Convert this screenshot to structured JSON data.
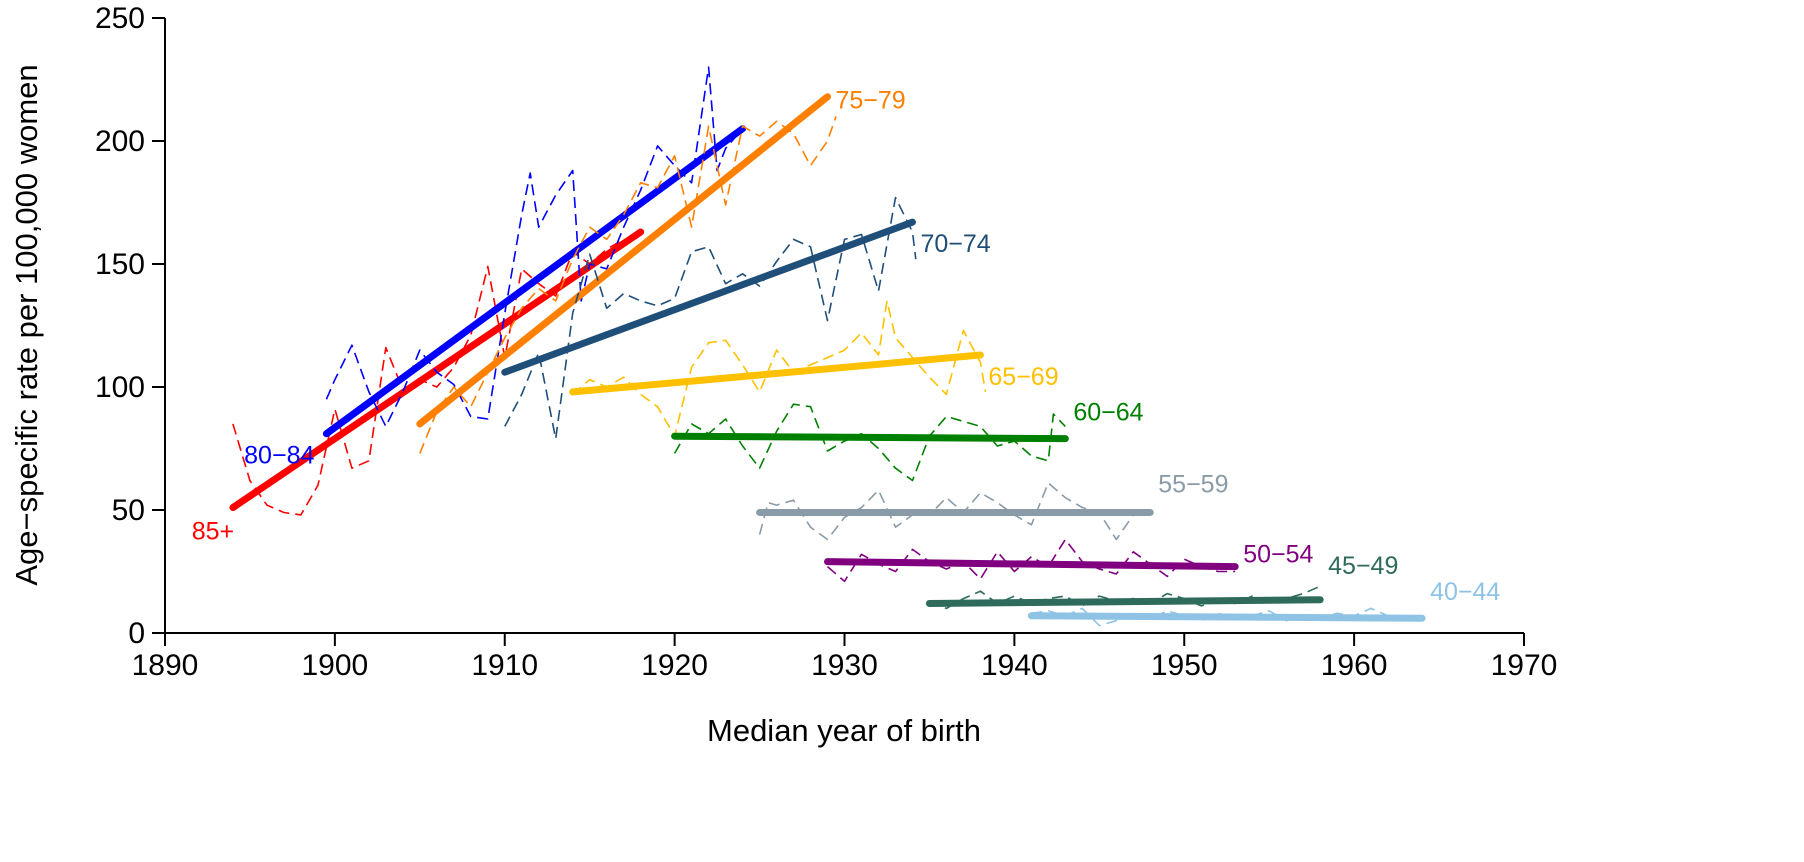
{
  "chart_data": {
    "type": "line",
    "title": "",
    "xlabel": "Median year of birth",
    "ylabel": "Age−specific rate per 100,000 women",
    "xlim": [
      1890,
      1970
    ],
    "ylim": [
      0,
      250
    ],
    "x_ticks": [
      "1890",
      "1900",
      "1910",
      "1920",
      "1930",
      "1940",
      "1950",
      "1960",
      "1970"
    ],
    "y_ticks": [
      "0",
      "50",
      "100",
      "150",
      "200",
      "250"
    ],
    "grid": false,
    "legend": "direct labels next to each fitted line",
    "series": [
      {
        "name": "85+",
        "color": "#FF0000",
        "fit": [
          [
            1894,
            51
          ],
          [
            1918,
            163
          ]
        ],
        "observed": [
          [
            1894,
            85
          ],
          [
            1895,
            62
          ],
          [
            1896,
            52
          ],
          [
            1897,
            49
          ],
          [
            1898,
            48
          ],
          [
            1899,
            60
          ],
          [
            1900,
            91
          ],
          [
            1901,
            67
          ],
          [
            1902,
            70
          ],
          [
            1903,
            116
          ],
          [
            1904,
            99
          ],
          [
            1905,
            103
          ],
          [
            1906,
            100
          ],
          [
            1907,
            108
          ],
          [
            1908,
            121
          ],
          [
            1909,
            149
          ],
          [
            1910,
            112
          ],
          [
            1911,
            148
          ],
          [
            1912,
            142
          ],
          [
            1913,
            137
          ],
          [
            1914,
            155
          ],
          [
            1915,
            150
          ],
          [
            1916,
            156
          ],
          [
            1917,
            160
          ]
        ]
      },
      {
        "name": "80−84",
        "color": "#0000FF",
        "fit": [
          [
            1899.5,
            81
          ],
          [
            1924,
            205
          ]
        ],
        "observed": [
          [
            1899.5,
            95
          ],
          [
            1900,
            103
          ],
          [
            1901,
            117
          ],
          [
            1902,
            98
          ],
          [
            1903,
            84
          ],
          [
            1904,
            98
          ],
          [
            1905,
            115
          ],
          [
            1906,
            106
          ],
          [
            1907,
            101
          ],
          [
            1908,
            88
          ],
          [
            1909,
            87
          ],
          [
            1910,
            130
          ],
          [
            1911,
            170
          ],
          [
            1911.5,
            187
          ],
          [
            1912,
            165
          ],
          [
            1913,
            178
          ],
          [
            1914,
            188
          ],
          [
            1914.5,
            135
          ],
          [
            1915,
            150
          ],
          [
            1916,
            148
          ],
          [
            1917,
            165
          ],
          [
            1918,
            180
          ],
          [
            1919,
            198
          ],
          [
            1920,
            190
          ],
          [
            1921,
            183
          ],
          [
            1922,
            230
          ],
          [
            1922.5,
            188
          ],
          [
            1923,
            197
          ],
          [
            1924,
            205
          ]
        ]
      },
      {
        "name": "75−79",
        "color": "#FF8000",
        "fit": [
          [
            1905,
            85
          ],
          [
            1929,
            218
          ]
        ],
        "observed": [
          [
            1905,
            73
          ],
          [
            1906,
            90
          ],
          [
            1907,
            100
          ],
          [
            1908,
            92
          ],
          [
            1909,
            106
          ],
          [
            1910,
            120
          ],
          [
            1911,
            132
          ],
          [
            1912,
            140
          ],
          [
            1913,
            135
          ],
          [
            1914,
            152
          ],
          [
            1915,
            165
          ],
          [
            1916,
            160
          ],
          [
            1917,
            170
          ],
          [
            1918,
            183
          ],
          [
            1919,
            181
          ],
          [
            1920,
            194
          ],
          [
            1921,
            165
          ],
          [
            1922,
            206
          ],
          [
            1923,
            174
          ],
          [
            1924,
            206
          ],
          [
            1925,
            202
          ],
          [
            1926,
            208
          ],
          [
            1927,
            203
          ],
          [
            1928,
            190
          ],
          [
            1929,
            200
          ],
          [
            1929.5,
            210
          ]
        ]
      },
      {
        "name": "70−74",
        "color": "#1F4E79",
        "fit": [
          [
            1910,
            106
          ],
          [
            1934,
            167
          ]
        ],
        "observed": [
          [
            1910,
            84
          ],
          [
            1911,
            97
          ],
          [
            1912,
            114
          ],
          [
            1913,
            79
          ],
          [
            1914,
            130
          ],
          [
            1915,
            154
          ],
          [
            1916,
            132
          ],
          [
            1917,
            138
          ],
          [
            1918,
            135
          ],
          [
            1919,
            133
          ],
          [
            1920,
            136
          ],
          [
            1921,
            155
          ],
          [
            1922,
            157
          ],
          [
            1923,
            142
          ],
          [
            1924,
            146
          ],
          [
            1925,
            141
          ],
          [
            1926,
            151
          ],
          [
            1927,
            160
          ],
          [
            1928,
            157
          ],
          [
            1929,
            127
          ],
          [
            1930,
            160
          ],
          [
            1931,
            162
          ],
          [
            1932,
            139
          ],
          [
            1933,
            177
          ],
          [
            1934,
            163
          ],
          [
            1934.2,
            152
          ]
        ]
      },
      {
        "name": "65−69",
        "color": "#FFC000",
        "fit": [
          [
            1914,
            98
          ],
          [
            1938,
            113
          ]
        ],
        "observed": [
          [
            1914,
            97
          ],
          [
            1915,
            103
          ],
          [
            1916,
            100
          ],
          [
            1917,
            104
          ],
          [
            1918,
            97
          ],
          [
            1919,
            92
          ],
          [
            1920,
            80
          ],
          [
            1921,
            108
          ],
          [
            1922,
            118
          ],
          [
            1923,
            119
          ],
          [
            1924,
            109
          ],
          [
            1925,
            98
          ],
          [
            1926,
            115
          ],
          [
            1927,
            106
          ],
          [
            1928,
            109
          ],
          [
            1929,
            112
          ],
          [
            1930,
            115
          ],
          [
            1931,
            122
          ],
          [
            1932,
            113
          ],
          [
            1932.5,
            135
          ],
          [
            1933,
            120
          ],
          [
            1934,
            112
          ],
          [
            1935,
            104
          ],
          [
            1936,
            97
          ],
          [
            1937,
            123
          ],
          [
            1938,
            110
          ],
          [
            1938.3,
            98
          ]
        ]
      },
      {
        "name": "60−64",
        "color": "#008000",
        "fit": [
          [
            1920,
            80
          ],
          [
            1943,
            79
          ]
        ],
        "observed": [
          [
            1920,
            73
          ],
          [
            1921,
            85
          ],
          [
            1922,
            81
          ],
          [
            1923,
            87
          ],
          [
            1924,
            76
          ],
          [
            1925,
            67
          ],
          [
            1926,
            82
          ],
          [
            1927,
            93
          ],
          [
            1928,
            92
          ],
          [
            1929,
            74
          ],
          [
            1930,
            78
          ],
          [
            1931,
            81
          ],
          [
            1932,
            75
          ],
          [
            1933,
            67
          ],
          [
            1934,
            62
          ],
          [
            1935,
            80
          ],
          [
            1936,
            88
          ],
          [
            1937,
            86
          ],
          [
            1938,
            84
          ],
          [
            1939,
            76
          ],
          [
            1940,
            78
          ],
          [
            1941,
            72
          ],
          [
            1942,
            70
          ],
          [
            1942.3,
            89
          ],
          [
            1943,
            84
          ]
        ]
      },
      {
        "name": "55−59",
        "color": "#8A9BA8",
        "fit": [
          [
            1925,
            49
          ],
          [
            1948,
            49
          ]
        ],
        "observed": [
          [
            1925,
            40
          ],
          [
            1925.5,
            53
          ],
          [
            1926,
            52
          ],
          [
            1927,
            54
          ],
          [
            1928,
            43
          ],
          [
            1929,
            38
          ],
          [
            1930,
            47
          ],
          [
            1931,
            51
          ],
          [
            1932,
            58
          ],
          [
            1933,
            43
          ],
          [
            1934,
            48
          ],
          [
            1935,
            48
          ],
          [
            1936,
            55
          ],
          [
            1937,
            49
          ],
          [
            1938,
            57
          ],
          [
            1939,
            53
          ],
          [
            1940,
            48
          ],
          [
            1941,
            44
          ],
          [
            1942,
            61
          ],
          [
            1943,
            55
          ],
          [
            1944,
            51
          ],
          [
            1945,
            49
          ],
          [
            1946,
            38
          ],
          [
            1947,
            48
          ],
          [
            1948,
            49
          ]
        ]
      },
      {
        "name": "50−54",
        "color": "#800080",
        "fit": [
          [
            1929,
            29
          ],
          [
            1953,
            27
          ]
        ],
        "observed": [
          [
            1929,
            27
          ],
          [
            1930,
            21
          ],
          [
            1931,
            32
          ],
          [
            1932,
            28
          ],
          [
            1933,
            25
          ],
          [
            1934,
            34
          ],
          [
            1935,
            29
          ],
          [
            1936,
            26
          ],
          [
            1937,
            29
          ],
          [
            1938,
            22
          ],
          [
            1939,
            33
          ],
          [
            1940,
            25
          ],
          [
            1941,
            31
          ],
          [
            1942,
            27
          ],
          [
            1943,
            38
          ],
          [
            1944,
            29
          ],
          [
            1945,
            26
          ],
          [
            1946,
            24
          ],
          [
            1947,
            33
          ],
          [
            1948,
            28
          ],
          [
            1949,
            23
          ],
          [
            1950,
            30
          ],
          [
            1951,
            27
          ],
          [
            1952,
            25
          ],
          [
            1953,
            25
          ]
        ]
      },
      {
        "name": "45−49",
        "color": "#2E6B5B",
        "fit": [
          [
            1935,
            12
          ],
          [
            1958,
            13.5
          ]
        ],
        "observed": [
          [
            1935,
            13
          ],
          [
            1936,
            10
          ],
          [
            1937,
            14
          ],
          [
            1938,
            17
          ],
          [
            1939,
            12
          ],
          [
            1940,
            15
          ],
          [
            1941,
            12
          ],
          [
            1942,
            14
          ],
          [
            1943,
            15
          ],
          [
            1944,
            11
          ],
          [
            1945,
            15
          ],
          [
            1946,
            13
          ],
          [
            1947,
            14
          ],
          [
            1948,
            12
          ],
          [
            1949,
            16
          ],
          [
            1950,
            14
          ],
          [
            1951,
            11
          ],
          [
            1952,
            13
          ],
          [
            1953,
            12
          ],
          [
            1954,
            15
          ],
          [
            1955,
            13
          ],
          [
            1956,
            14
          ],
          [
            1957,
            16
          ],
          [
            1958,
            19
          ]
        ]
      },
      {
        "name": "40−44",
        "color": "#8EC3E6",
        "fit": [
          [
            1941,
            7
          ],
          [
            1964,
            6
          ]
        ],
        "observed": [
          [
            1941,
            8
          ],
          [
            1942,
            9
          ],
          [
            1943,
            7
          ],
          [
            1944,
            10
          ],
          [
            1945,
            3
          ],
          [
            1946,
            5
          ],
          [
            1947,
            8
          ],
          [
            1948,
            6
          ],
          [
            1949,
            9
          ],
          [
            1950,
            7
          ],
          [
            1951,
            5
          ],
          [
            1952,
            8
          ],
          [
            1953,
            6
          ],
          [
            1954,
            7
          ],
          [
            1955,
            9
          ],
          [
            1956,
            5
          ],
          [
            1957,
            7
          ],
          [
            1958,
            6
          ],
          [
            1959,
            8
          ],
          [
            1960,
            7
          ],
          [
            1961,
            10
          ],
          [
            1962,
            7
          ],
          [
            1963,
            6
          ],
          [
            1964,
            6
          ]
        ]
      }
    ]
  }
}
